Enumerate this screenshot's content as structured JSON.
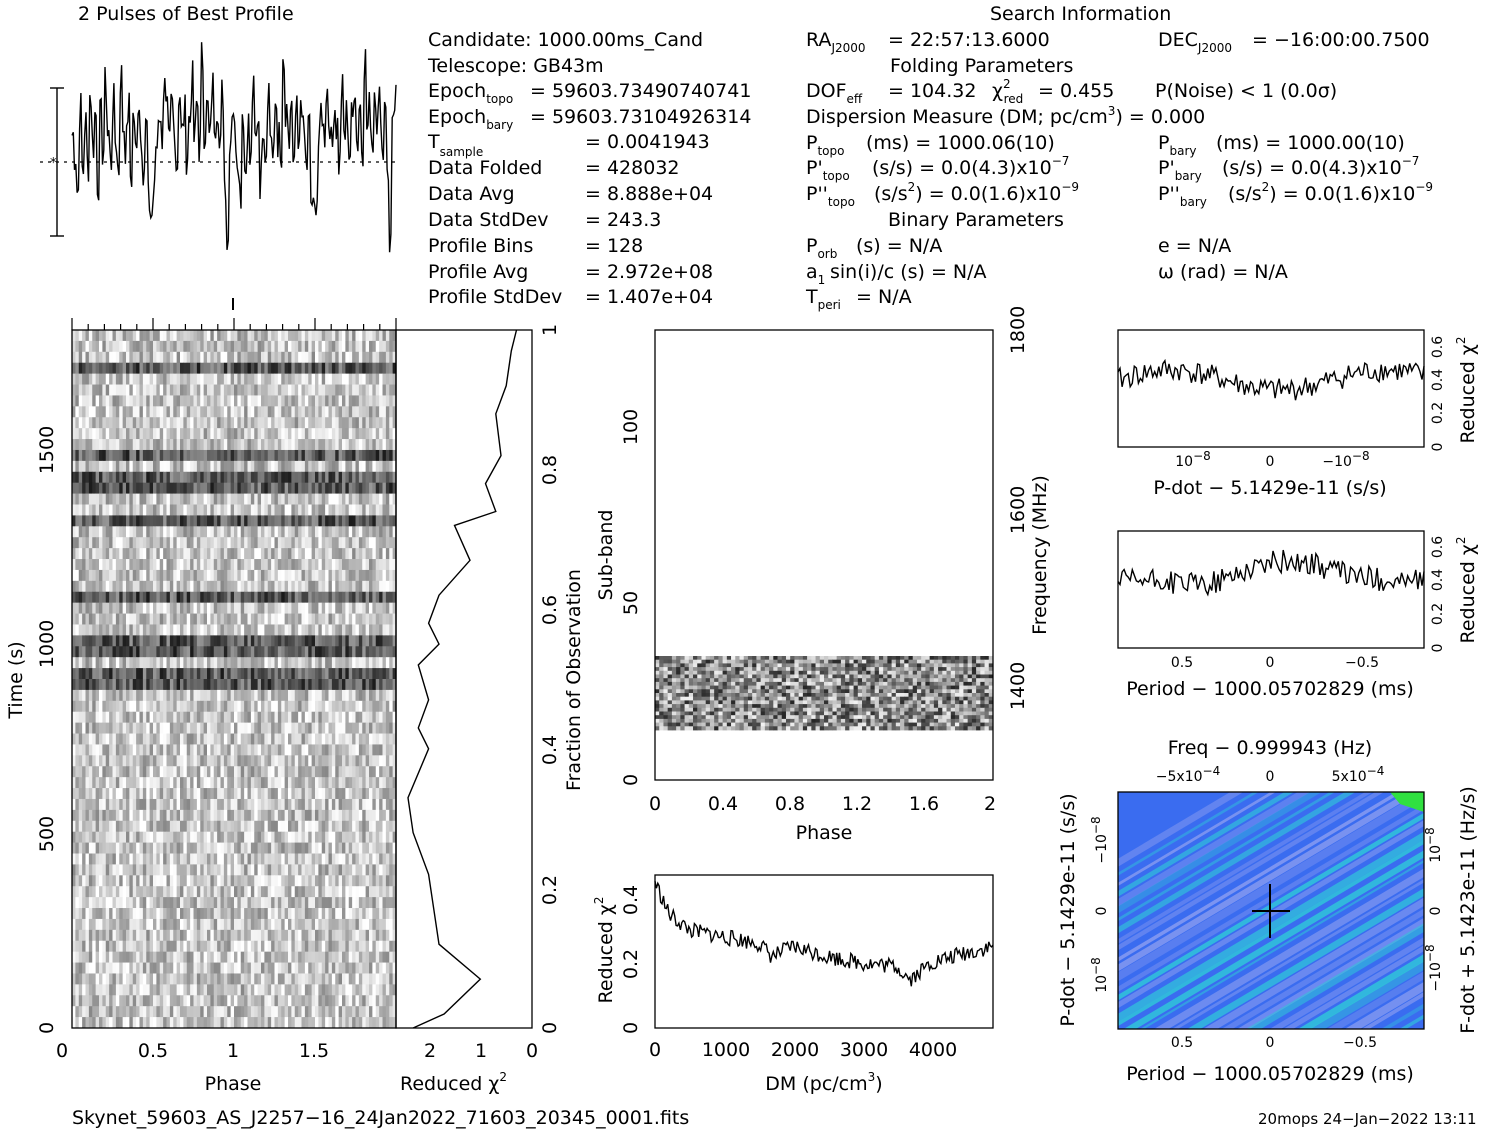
{
  "header": {
    "profile_title": "2 Pulses of Best Profile",
    "search_title": "Search Information",
    "folding_title": "Folding Parameters",
    "binary_title": "Binary Parameters"
  },
  "info_left": {
    "candidate": "Candidate:  1000.00ms_Cand",
    "telescope": "Telescope:  GB43m",
    "epoch_topo_value": "= 59603.73490740741",
    "epoch_bary_value": "= 59603.73104926314",
    "tsample_value": "=   0.0041943",
    "folded_label": "Data Folded",
    "folded_value": "=   428032",
    "avg_label": "Data Avg",
    "avg_value": "=   8.888e+04",
    "std_label": "Data StdDev",
    "std_value": "=   243.3",
    "bins_label": "Profile Bins",
    "bins_value": "=   128",
    "pavg_label": "Profile Avg",
    "pavg_value": "=   2.972e+08",
    "pstd_label": "Profile StdDev",
    "pstd_value": "=   1.407e+04"
  },
  "info_mid": {
    "ra": "= 22:57:13.6000",
    "dof_value": "= 104.32",
    "chi_value": "= 0.455",
    "dm": "Dispersion Measure (DM; pc/cm",
    "dm_value": ") = 0.000",
    "ptopo": "(ms) =  1000.06(10)",
    "pdtopo": "(s/s) = 0.0(4.3)x10",
    "pddtopo": "(s/s",
    "pddtopo2": ") = 0.0(1.6)x10",
    "porb": "(s) = N/A",
    "a1": "sin(i)/c (s) = N/A",
    "tperi": "= N/A"
  },
  "info_right": {
    "dec": "= −16:00:00.7500",
    "pnoise": "P(Noise) < 1   (0.0σ)",
    "pbary": "(ms) =  1000.00(10)",
    "pdbary": "(s/s) = 0.0(4.3)x10",
    "pddbary": "(s/s",
    "pddbary2": ") = 0.0(1.6)x10",
    "e": "e = N/A",
    "omega": "ω (rad) = N/A"
  },
  "axes": {
    "phase": "Phase",
    "time": "Time (s)",
    "reduced_chi": "Reduced",
    "fraction": "Fraction of Observation",
    "subband": "Sub-band",
    "frequency": "Frequency (MHz)",
    "dm": "DM (pc/cm",
    "pdot_title": "P-dot − 5.1429e-11 (s/s)",
    "period_title": "Period − 1000.05702829 (ms)",
    "freq_title": "Freq − 0.999943 (Hz)",
    "pdot_left": "P-dot − 5.1429e-11 (s/s)",
    "fdot_right": "F-dot + 5.1423e-11 (Hz/s)"
  },
  "footer": {
    "filename": "Skynet_59603_AS_J2257−16_24Jan2022_71603_20345_0001.fits",
    "stamp": "20mops 24−Jan−2022 13:11"
  },
  "colors": {
    "ppdot_bg": "#3a6cf0",
    "ppdot_hi": "#30c8d8",
    "ppdot_peak": "#30e040"
  },
  "chart_data": [
    {
      "type": "line",
      "name": "profile",
      "series": [
        {
          "values": [
            0.62,
            0.55,
            0.4,
            0.72,
            0.48,
            0.66,
            0.51,
            0.78,
            0.59,
            0.7,
            0.44,
            0.68,
            0.57,
            0.81,
            0.63,
            0.52,
            0.74,
            0.6,
            0.49,
            0.85,
            0.66,
            0.58,
            0.72,
            0.46,
            0.69,
            0.54,
            0.77,
            0.61,
            0.5,
            0.65,
            0.35,
            0.3,
            0.38,
            0.58,
            0.72,
            0.63,
            0.8,
            0.69,
            0.57,
            0.74,
            0.66,
            0.51,
            0.79,
            0.62,
            0.7,
            0.55,
            0.68,
            0.83,
            0.6,
            0.74,
            0.58,
            0.92,
            0.65,
            0.72,
            0.6,
            0.81,
            0.69,
            0.75,
            0.56,
            0.78,
            0.44,
            0.2,
            0.62,
            0.74
          ]
        }
      ]
    },
    {
      "type": "line",
      "name": "time_chi2",
      "x_label": "Reduced χ²",
      "xlim": [
        2.5,
        0
      ],
      "values": [
        [
          0.3,
          1
        ],
        [
          0.4,
          0.97
        ],
        [
          0.5,
          0.92
        ],
        [
          0.7,
          0.88
        ],
        [
          0.6,
          0.82
        ],
        [
          0.9,
          0.78
        ],
        [
          0.7,
          0.74
        ],
        [
          1.5,
          0.72
        ],
        [
          1.2,
          0.67
        ],
        [
          1.8,
          0.62
        ],
        [
          2.0,
          0.58
        ],
        [
          1.8,
          0.55
        ],
        [
          2.2,
          0.52
        ],
        [
          2.0,
          0.47
        ],
        [
          2.2,
          0.43
        ],
        [
          2.0,
          0.4
        ],
        [
          2.4,
          0.33
        ],
        [
          2.3,
          0.28
        ],
        [
          2.0,
          0.22
        ],
        [
          1.9,
          0.17
        ],
        [
          1.8,
          0.12
        ],
        [
          1.0,
          0.07
        ],
        [
          1.7,
          0.02
        ],
        [
          2.3,
          0
        ]
      ]
    },
    {
      "type": "line",
      "name": "dm_chi2",
      "xlim": [
        0,
        4900
      ],
      "ylim": [
        0,
        0.47
      ],
      "values": [
        [
          0,
          0.45
        ],
        [
          200,
          0.35
        ],
        [
          500,
          0.3
        ],
        [
          1000,
          0.28
        ],
        [
          1500,
          0.26
        ],
        [
          1700,
          0.22
        ],
        [
          2000,
          0.25
        ],
        [
          2500,
          0.22
        ],
        [
          3000,
          0.2
        ],
        [
          3500,
          0.19
        ],
        [
          3700,
          0.15
        ],
        [
          4000,
          0.2
        ],
        [
          4500,
          0.23
        ],
        [
          4900,
          0.25
        ]
      ]
    },
    {
      "type": "line",
      "name": "pdot_chi2",
      "ylim": [
        0,
        0.7
      ],
      "y_ticks": [
        "0",
        "0.2",
        "0.4",
        "0.6"
      ],
      "x_ticks": [
        "10⁻⁸",
        "0",
        "−10⁻⁸"
      ]
    },
    {
      "type": "line",
      "name": "period_chi2",
      "ylim": [
        0,
        0.7
      ],
      "y_ticks": [
        "0",
        "0.2",
        "0.4",
        "0.6"
      ],
      "x_ticks": [
        "0.5",
        "0",
        "−0.5"
      ]
    },
    {
      "type": "heatmap",
      "name": "ppdot",
      "x_ticks": [
        "0.5",
        "0",
        "−0.5"
      ],
      "top_ticks": [
        "−5x10⁻⁴",
        "0",
        "5x10⁻⁴"
      ]
    }
  ]
}
